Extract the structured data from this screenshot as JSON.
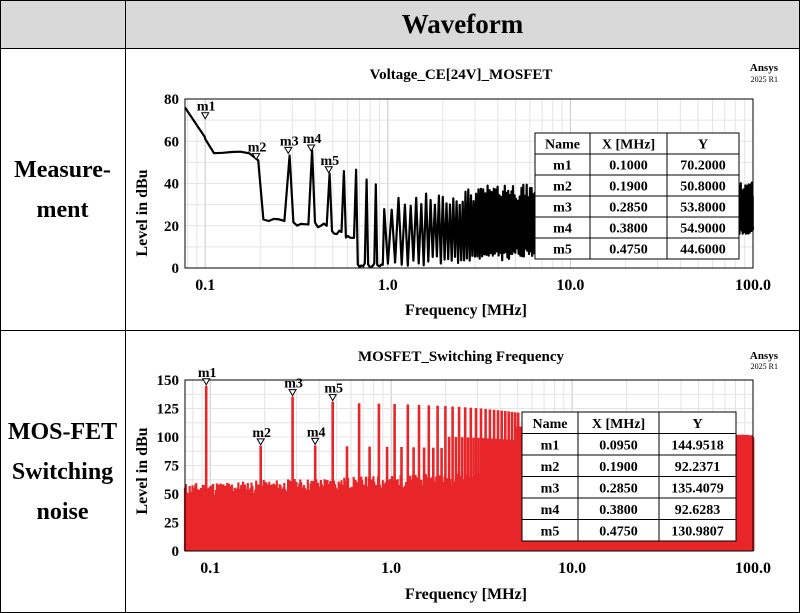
{
  "header": {
    "waveform": "Waveform"
  },
  "rows": [
    {
      "label_lines": [
        "Measure-",
        "ment"
      ]
    },
    {
      "label_lines": [
        "MOS-FET",
        "Switching",
        "noise"
      ]
    }
  ],
  "chart_data": [
    {
      "type": "line",
      "title": "Voltage_CE[24V]_MOSFET",
      "brand": "Ansys",
      "brand_version": "2025 R1",
      "xlabel": "Frequency [MHz]",
      "ylabel": "Level in dBu",
      "x_scale": "log",
      "xlim": [
        0.0775,
        100
      ],
      "ylim": [
        0,
        80
      ],
      "x_ticks": [
        0.1,
        1.0,
        10.0,
        100.0
      ],
      "x_tick_labels": [
        "0.1",
        "1.0",
        "10.0",
        "100.0"
      ],
      "y_ticks": [
        0,
        20,
        40,
        60,
        80
      ],
      "grid": true,
      "color": "#000000",
      "markers": [
        {
          "name": "m1",
          "x": 0.1,
          "y": 70.2
        },
        {
          "name": "m2",
          "x": 0.19,
          "y": 50.8
        },
        {
          "name": "m3",
          "x": 0.285,
          "y": 53.8
        },
        {
          "name": "m4",
          "x": 0.38,
          "y": 54.9
        },
        {
          "name": "m5",
          "x": 0.475,
          "y": 44.6
        }
      ],
      "table": {
        "headers": [
          "Name",
          "X [MHz]",
          "Y"
        ],
        "rows": [
          [
            "m1",
            "0.1000",
            "70.2000"
          ],
          [
            "m2",
            "0.1900",
            "50.8000"
          ],
          [
            "m3",
            "0.2850",
            "53.8000"
          ],
          [
            "m4",
            "0.3800",
            "54.9000"
          ],
          [
            "m5",
            "0.4750",
            "44.6000"
          ]
        ]
      }
    },
    {
      "type": "bar",
      "title": "MOSFET_Switching Frequency",
      "brand": "Ansys",
      "brand_version": "2025 R1",
      "xlabel": "Frequency [MHz]",
      "ylabel": "Level in dBu",
      "x_scale": "log",
      "xlim": [
        0.0725,
        100
      ],
      "ylim": [
        0,
        150
      ],
      "x_ticks": [
        0.1,
        1.0,
        10.0,
        100.0
      ],
      "x_tick_labels": [
        "0.1",
        "1.0",
        "10.0",
        "100.0"
      ],
      "y_ticks": [
        0,
        25,
        50,
        75,
        100,
        125,
        150
      ],
      "grid": true,
      "color": "#e8262a",
      "markers": [
        {
          "name": "m1",
          "x": 0.095,
          "y": 144.9518
        },
        {
          "name": "m2",
          "x": 0.19,
          "y": 92.2371
        },
        {
          "name": "m3",
          "x": 0.285,
          "y": 135.4079
        },
        {
          "name": "m4",
          "x": 0.38,
          "y": 92.6283
        },
        {
          "name": "m5",
          "x": 0.475,
          "y": 130.9807
        }
      ],
      "table": {
        "headers": [
          "Name",
          "X [MHz]",
          "Y"
        ],
        "rows": [
          [
            "m1",
            "0.0950",
            "144.9518"
          ],
          [
            "m2",
            "0.1900",
            "92.2371"
          ],
          [
            "m3",
            "0.2850",
            "135.4079"
          ],
          [
            "m4",
            "0.3800",
            "92.6283"
          ],
          [
            "m5",
            "0.4750",
            "130.9807"
          ]
        ]
      }
    }
  ]
}
